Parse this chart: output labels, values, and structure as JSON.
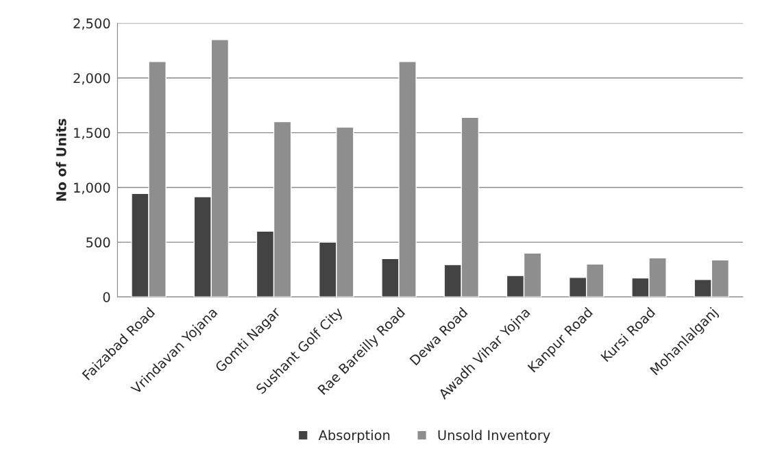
{
  "chart_data": {
    "type": "bar",
    "ylabel": "No of Units",
    "categories": [
      "Faizabad Road",
      "Vrindavan Yojana",
      "Gomti Nagar",
      "Sushant Golf City",
      "Rae Bareilly Road",
      "Dewa Road",
      "Awadh Vihar Yojna",
      "Kanpur Road",
      "Kursi Road",
      "Mohanlalganj"
    ],
    "series": [
      {
        "name": "Absorption",
        "color": "#434343",
        "values": [
          945,
          915,
          600,
          500,
          350,
          295,
          195,
          178,
          174,
          160
        ]
      },
      {
        "name": "Unsold Inventory",
        "color": "#8e8e8e",
        "values": [
          2150,
          2350,
          1600,
          1550,
          2150,
          1640,
          400,
          300,
          357,
          338
        ]
      }
    ],
    "ylim": [
      0,
      2500
    ],
    "yticks": [
      {
        "value": 0,
        "label": "0"
      },
      {
        "value": 500,
        "label": "500"
      },
      {
        "value": 1000,
        "label": "1,000"
      },
      {
        "value": 1500,
        "label": "1,500"
      },
      {
        "value": 2000,
        "label": "2,000"
      },
      {
        "value": 2500,
        "label": "2,500"
      }
    ],
    "grid": "y",
    "legend": "bottom"
  }
}
